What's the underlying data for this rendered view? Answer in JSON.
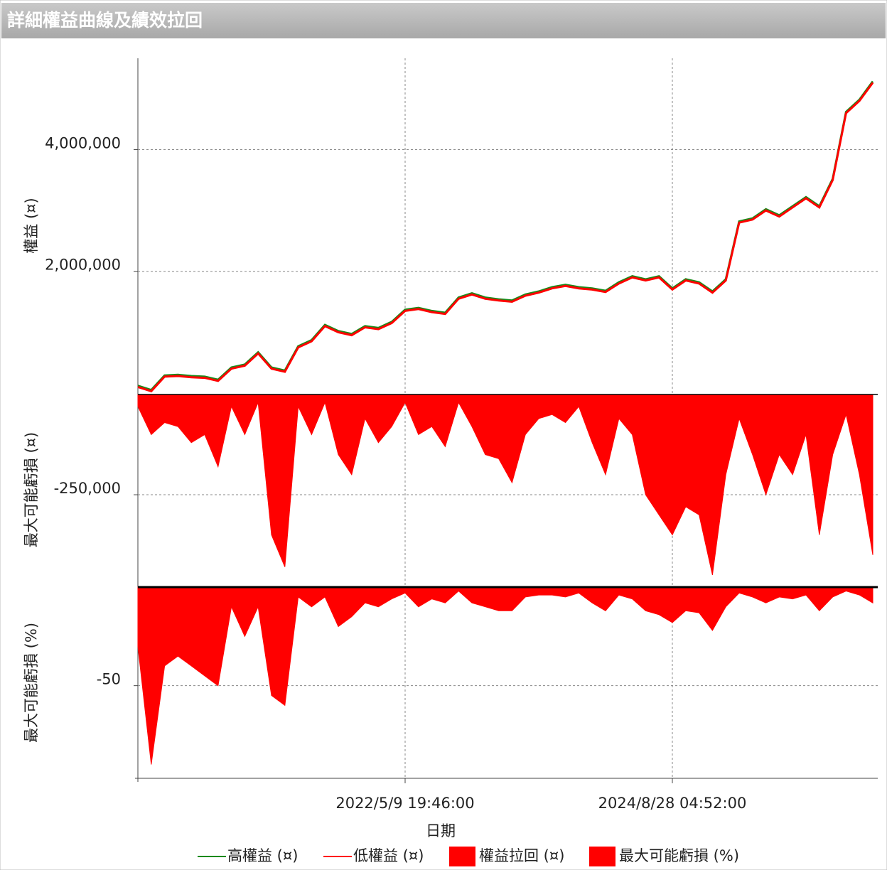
{
  "title": "詳細權益曲線及績效拉回",
  "chart_data": [
    {
      "type": "line",
      "ylabel": "權益 (¤)",
      "ylim": [
        0,
        5500000
      ],
      "yticks": [
        {
          "value": 2000000,
          "label": "2,000,000"
        },
        {
          "value": 4000000,
          "label": "4,000,000"
        }
      ],
      "grid": true,
      "series": [
        {
          "name": "高權益 (¤)",
          "color": "#1a8a1a",
          "values": [
            120000,
            50000,
            290000,
            300000,
            280000,
            270000,
            220000,
            420000,
            470000,
            670000,
            420000,
            370000,
            770000,
            870000,
            1120000,
            1020000,
            970000,
            1100000,
            1070000,
            1170000,
            1370000,
            1400000,
            1350000,
            1320000,
            1570000,
            1640000,
            1570000,
            1540000,
            1520000,
            1620000,
            1670000,
            1740000,
            1780000,
            1740000,
            1720000,
            1680000,
            1820000,
            1920000,
            1870000,
            1920000,
            1720000,
            1870000,
            1820000,
            1670000,
            1870000,
            2820000,
            2870000,
            3020000,
            2920000,
            3070000,
            3220000,
            3070000,
            3520000,
            4620000,
            4820000,
            5120000
          ]
        },
        {
          "name": "低權益 (¤)",
          "color": "#ff0000",
          "values": [
            100000,
            30000,
            270000,
            280000,
            260000,
            250000,
            200000,
            400000,
            450000,
            650000,
            400000,
            350000,
            750000,
            850000,
            1100000,
            1000000,
            950000,
            1080000,
            1050000,
            1150000,
            1350000,
            1380000,
            1330000,
            1300000,
            1550000,
            1620000,
            1550000,
            1520000,
            1500000,
            1600000,
            1650000,
            1720000,
            1760000,
            1720000,
            1700000,
            1660000,
            1800000,
            1900000,
            1850000,
            1900000,
            1700000,
            1850000,
            1800000,
            1650000,
            1850000,
            2800000,
            2850000,
            3000000,
            2900000,
            3050000,
            3200000,
            3050000,
            3500000,
            4600000,
            4800000,
            5100000
          ]
        }
      ]
    },
    {
      "type": "area",
      "ylabel": "最大可能虧損 (¤)",
      "ylim": [
        -475000,
        0
      ],
      "yticks": [
        {
          "value": -250000,
          "label": "-250,000"
        }
      ],
      "grid": true,
      "series": [
        {
          "name": "權益拉回 (¤)",
          "color": "#ff0000",
          "values": [
            -30000,
            -100000,
            -70000,
            -80000,
            -120000,
            -100000,
            -180000,
            -30000,
            -100000,
            -20000,
            -350000,
            -430000,
            -30000,
            -100000,
            -20000,
            -150000,
            -200000,
            -60000,
            -120000,
            -80000,
            -20000,
            -100000,
            -80000,
            -130000,
            -20000,
            -80000,
            -150000,
            -160000,
            -220000,
            -100000,
            -60000,
            -50000,
            -70000,
            -30000,
            -120000,
            -200000,
            -60000,
            -100000,
            -250000,
            -300000,
            -350000,
            -280000,
            -300000,
            -450000,
            -200000,
            -60000,
            -150000,
            -250000,
            -150000,
            -200000,
            -100000,
            -350000,
            -150000,
            -50000,
            -200000,
            -400000
          ]
        }
      ]
    },
    {
      "type": "area",
      "ylabel": "最大可能虧損 (%)",
      "ylim": [
        -97,
        0
      ],
      "yticks": [
        -50
      ],
      "grid": true,
      "xlabel": "日期",
      "categories": [
        null,
        null,
        null,
        null,
        null,
        null,
        null,
        null,
        null,
        null,
        null,
        null,
        null,
        null,
        null,
        null,
        null,
        null,
        null,
        null,
        "2022/5/9 19:46:00",
        null,
        null,
        null,
        null,
        null,
        null,
        null,
        null,
        null,
        null,
        null,
        null,
        null,
        null,
        null,
        null,
        null,
        null,
        null,
        "2024/8/28 04:52:00",
        null,
        null,
        null,
        null,
        null,
        null,
        null,
        null,
        null,
        null,
        null,
        null,
        null,
        null,
        null
      ],
      "series": [
        {
          "name": "最大可能虧損 (%)",
          "color": "#ff0000",
          "values": [
            -30,
            -90,
            -40,
            -35,
            -40,
            -45,
            -50,
            -10,
            -25,
            -10,
            -55,
            -60,
            -5,
            -10,
            -5,
            -20,
            -15,
            -8,
            -10,
            -6,
            -3,
            -10,
            -6,
            -8,
            -2,
            -8,
            -10,
            -12,
            -12,
            -5,
            -4,
            -4,
            -5,
            -3,
            -8,
            -12,
            -4,
            -6,
            -12,
            -14,
            -18,
            -12,
            -13,
            -22,
            -10,
            -3,
            -5,
            -8,
            -5,
            -6,
            -4,
            -12,
            -5,
            -2,
            -4,
            -8
          ]
        }
      ]
    }
  ]
}
